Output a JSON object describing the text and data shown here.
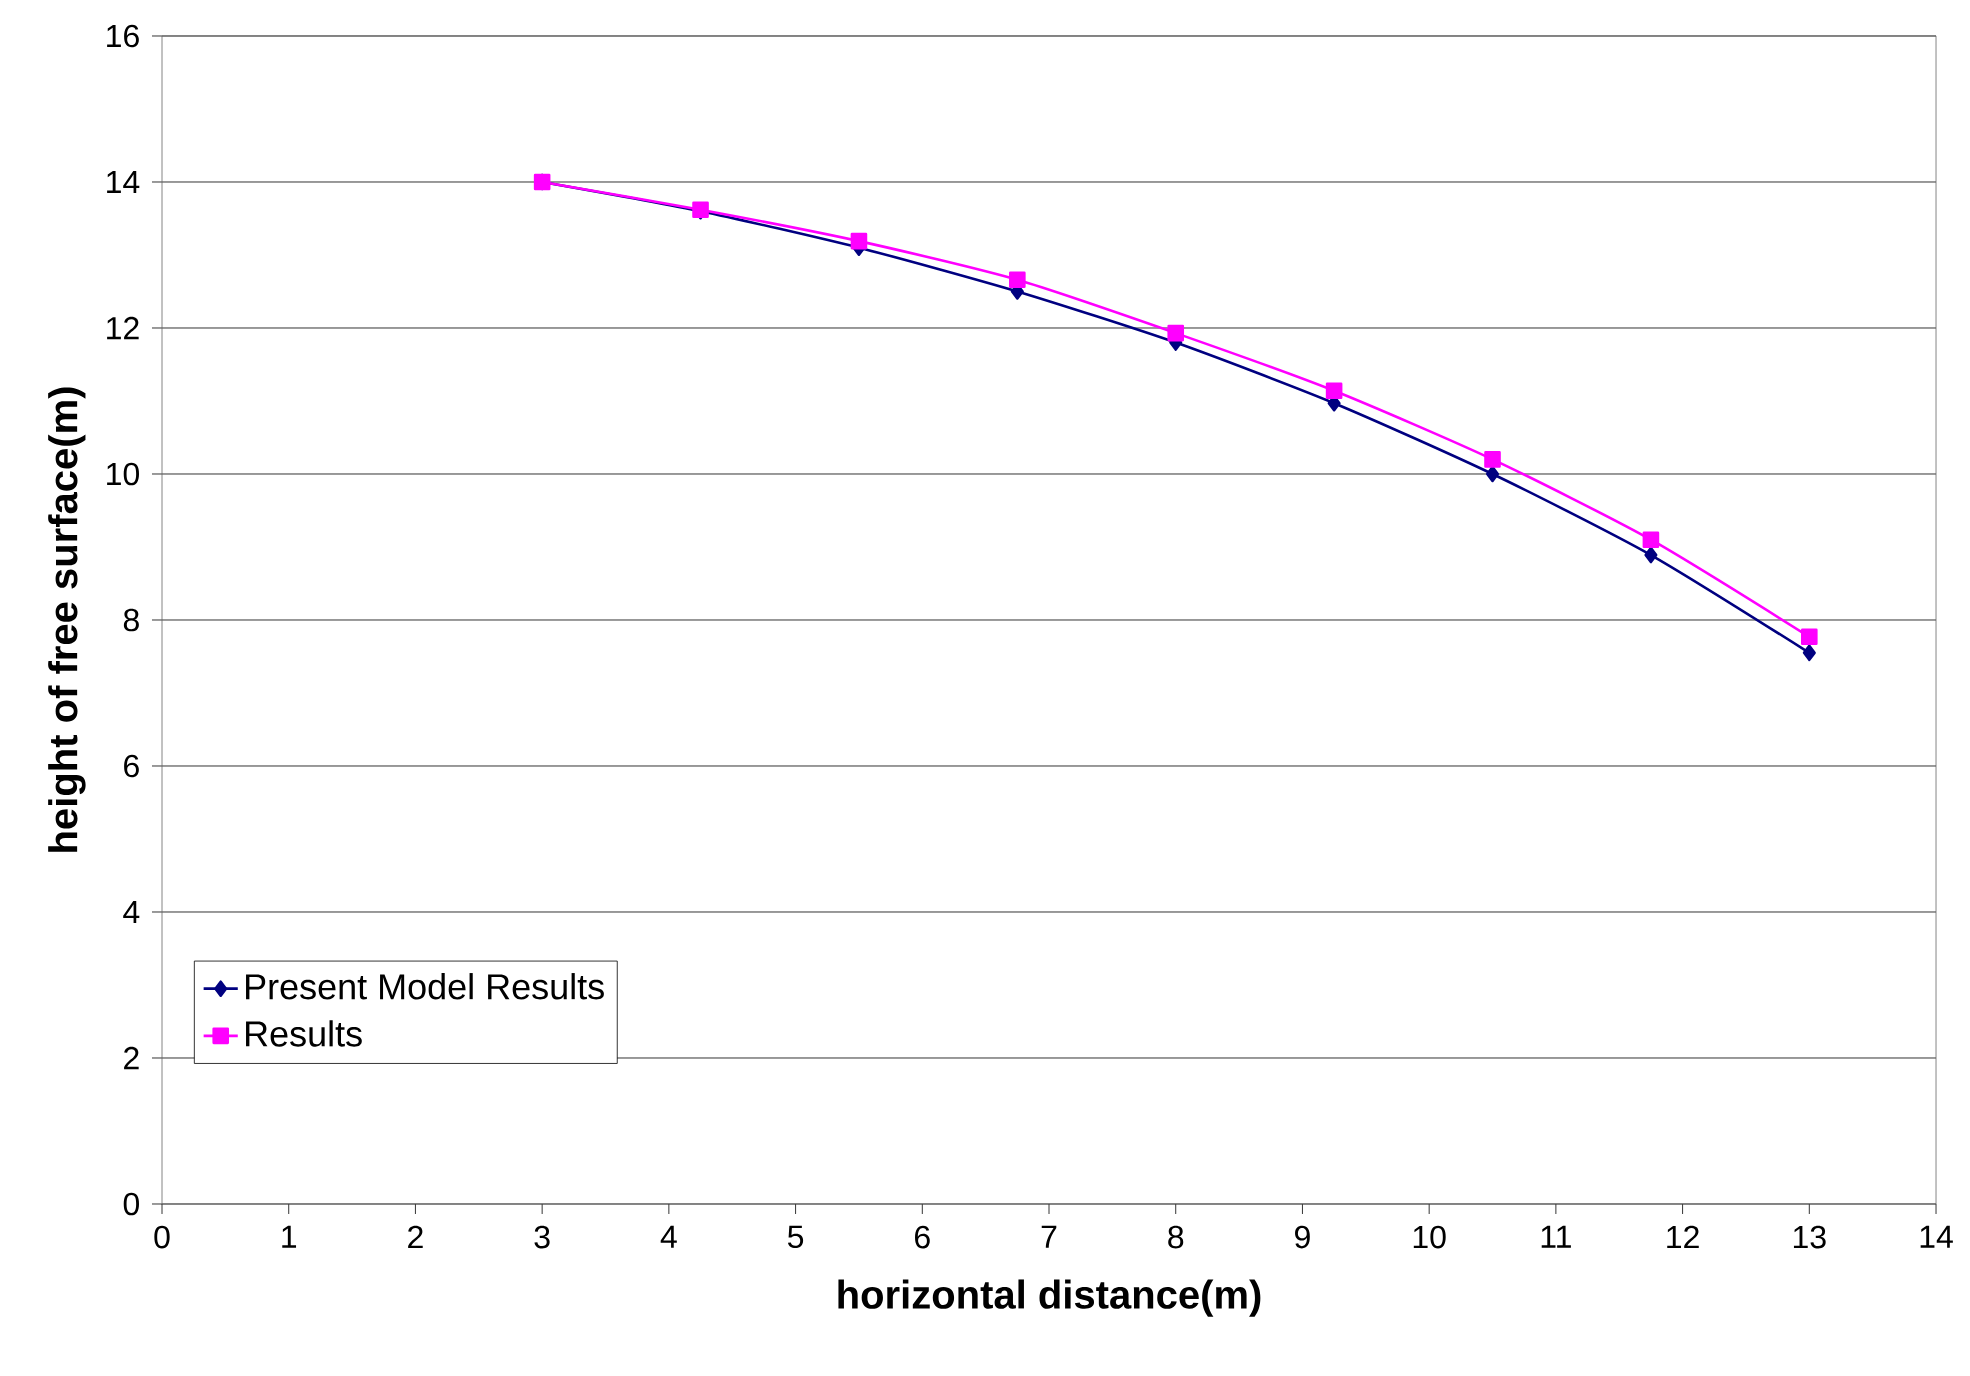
{
  "chart_data": {
    "type": "line",
    "xlabel": "horizontal distance(m)",
    "ylabel": "height of free surface(m)",
    "x": [
      3,
      4.25,
      5.5,
      6.75,
      8,
      9.25,
      10.5,
      11.75,
      13
    ],
    "series": [
      {
        "name": "Present Model Results",
        "color": "#000080",
        "marker": "diamond",
        "values": [
          14.0,
          13.6,
          13.1,
          12.5,
          11.8,
          10.97,
          10.0,
          8.89,
          7.55
        ]
      },
      {
        "name": "Results",
        "color": "#ff00ff",
        "marker": "square",
        "values": [
          14.0,
          13.62,
          13.19,
          12.66,
          11.93,
          11.14,
          10.2,
          9.1,
          7.77
        ]
      }
    ],
    "xlim": [
      0,
      14
    ],
    "ylim": [
      0,
      16
    ],
    "xticks": [
      0,
      1,
      2,
      3,
      4,
      5,
      6,
      7,
      8,
      9,
      10,
      11,
      12,
      13,
      14
    ],
    "yticks": [
      0,
      2,
      4,
      6,
      8,
      10,
      12,
      14,
      16
    ],
    "grid": "y",
    "legend": "bottom left",
    "line_style": "solid"
  }
}
